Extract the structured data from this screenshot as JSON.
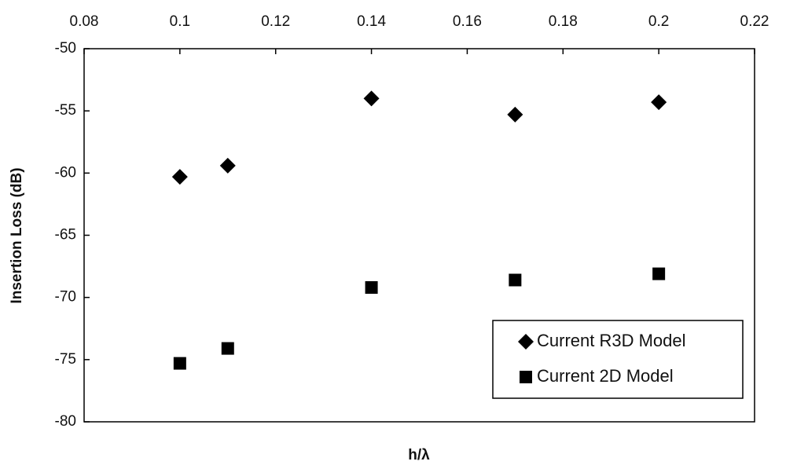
{
  "chart_data": {
    "type": "scatter",
    "x_label": "h/λ",
    "y_label": "Insertion Loss (dB)",
    "xlim": [
      0.08,
      0.22
    ],
    "xticks": [
      0.08,
      0.1,
      0.12,
      0.14,
      0.16,
      0.18,
      0.2,
      0.22
    ],
    "ylim": [
      -80,
      -50
    ],
    "yticks": [
      -50,
      -55,
      -60,
      -65,
      -70,
      -75,
      -80
    ],
    "x_axis_position": "top",
    "legend": "lower right",
    "grid": false,
    "series": [
      {
        "name": "Current R3D Model",
        "color": "#000000",
        "marker": "diamond",
        "x": [
          0.1,
          0.11,
          0.14,
          0.17,
          0.2
        ],
        "values": [
          -60.3,
          -59.4,
          -54.0,
          -55.3,
          -54.3
        ]
      },
      {
        "name": "Current 2D Model",
        "color": "#000000",
        "marker": "square",
        "x": [
          0.1,
          0.11,
          0.14,
          0.17,
          0.2
        ],
        "values": [
          -75.3,
          -74.1,
          -69.2,
          -68.6,
          -68.1
        ]
      }
    ]
  }
}
